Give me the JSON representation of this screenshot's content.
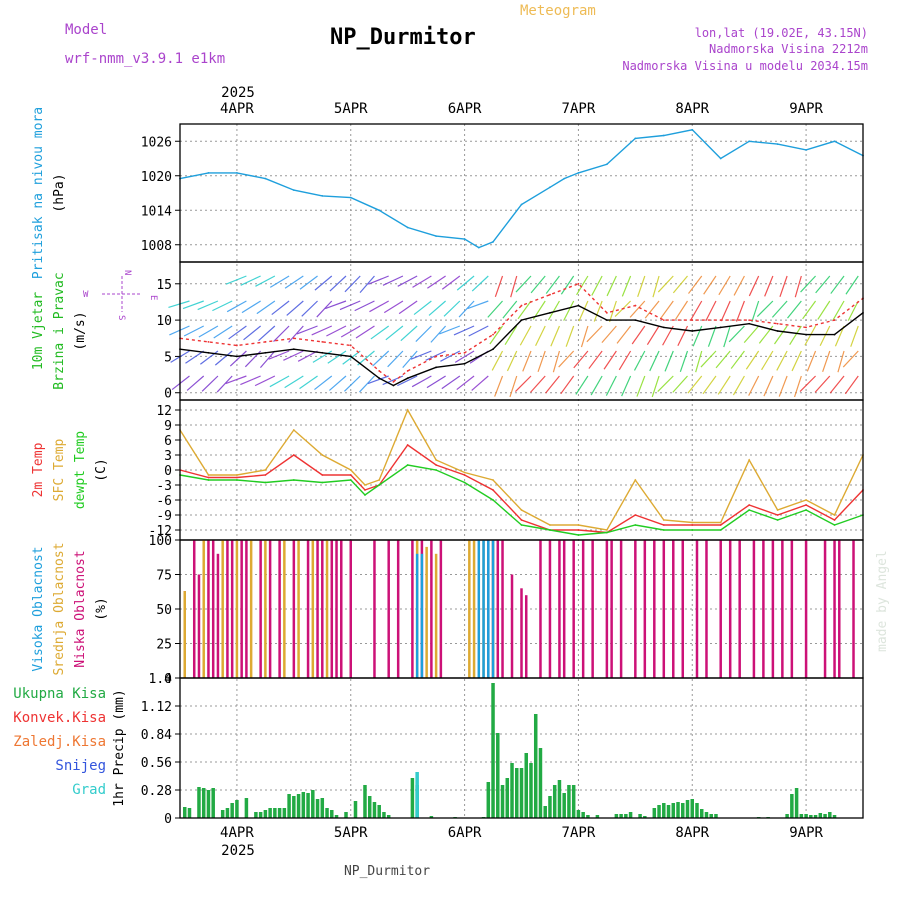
{
  "header": {
    "model_label": "Model",
    "model_name": "wrf-nmm_v3.9.1 e1km",
    "title": "NP_Durmitor",
    "meteogram": "Meteogram",
    "lonlat": "lon,lat (19.02E, 43.15N)",
    "elevation": "Nadmorska Visina 2212m",
    "model_elevation": "Nadmorska Visina u modelu 2034.15m",
    "year": "2025",
    "footer": "NP_Durmitor",
    "watermark": "made by Angel"
  },
  "colors": {
    "pressure": "#1e9fdc",
    "wind_label": "#22bb22",
    "temp2m": "#ee3333",
    "sfc": "#ddaa33",
    "dew": "#22cc22",
    "cloud_high": "#1e9fdc",
    "cloud_mid": "#ddaa33",
    "cloud_low": "#cc1177",
    "precip_total": "#22aa44",
    "precip_conv": "#ee3333",
    "precip_frz": "#ee7733",
    "precip_snow": "#3355dd",
    "precip_hail": "#33cccc",
    "compass": "#aa44cc"
  },
  "chart_data": {
    "type": "meteogram",
    "dates": [
      "4APR",
      "5APR",
      "6APR",
      "7APR",
      "8APR",
      "9APR"
    ],
    "x_range_hours": [
      -12,
      132
    ],
    "panels": [
      {
        "id": "pressure",
        "type": "line",
        "ylabel": [
          "Pritisak na nivou mora",
          "(hPa)"
        ],
        "ylim": [
          1005,
          1029
        ],
        "yticks": [
          1008,
          1014,
          1020,
          1026
        ],
        "series": [
          {
            "name": "Pritisak na nivou mora",
            "x": [
              -12,
              -6,
              0,
              6,
              12,
              18,
              24,
              30,
              36,
              42,
              48,
              51,
              54,
              60,
              66,
              69,
              72,
              78,
              84,
              90,
              96,
              102,
              108,
              114,
              120,
              126,
              132
            ],
            "y": [
              1019.5,
              1020.5,
              1020.5,
              1019.5,
              1017.5,
              1016.5,
              1016.2,
              1014,
              1011,
              1009.5,
              1009,
              1007.5,
              1008.5,
              1015,
              1018,
              1019.5,
              1020.5,
              1022,
              1026.5,
              1027,
              1028,
              1023,
              1026,
              1025.5,
              1024.5,
              1026,
              1023.5
            ]
          }
        ]
      },
      {
        "id": "wind",
        "type": "line+barbs",
        "ylabel": [
          "10m Vjetar",
          "Brzina i Pravac",
          "(m/s)"
        ],
        "ylim": [
          -1,
          18
        ],
        "yticks": [
          0,
          5,
          10,
          15
        ],
        "compass": [
          "N",
          "E",
          "S",
          "W"
        ],
        "series": [
          {
            "name": "Brzina",
            "x": [
              -12,
              -6,
              0,
              6,
              12,
              18,
              24,
              30,
              33,
              36,
              42,
              48,
              54,
              60,
              66,
              72,
              78,
              84,
              90,
              96,
              102,
              108,
              114,
              120,
              126,
              132
            ],
            "y": [
              6,
              5.5,
              5,
              5.5,
              6,
              5.5,
              5,
              2,
              1,
              2,
              3.5,
              4,
              6,
              10,
              11,
              12,
              10,
              10,
              9,
              8.5,
              9,
              9.5,
              8.5,
              8,
              8,
              11
            ]
          },
          {
            "name": "Udari",
            "x": [
              -12,
              -6,
              0,
              6,
              12,
              18,
              24,
              30,
              33,
              36,
              42,
              48,
              54,
              60,
              66,
              72,
              78,
              84,
              90,
              96,
              102,
              108,
              114,
              120,
              126,
              132
            ],
            "y": [
              7.5,
              7,
              6.5,
              7,
              7.5,
              7,
              6.5,
              3,
              1.5,
              3,
              5,
              5.5,
              8,
              12,
              13.5,
              15,
              11,
              12,
              10,
              10,
              10,
              10,
              9.5,
              9,
              10,
              13
            ]
          }
        ]
      },
      {
        "id": "temperature",
        "type": "line",
        "ylabel": [
          "2m Temp",
          "SFC Temp",
          "dewpt Temp",
          "(C)"
        ],
        "ylim": [
          -14,
          14
        ],
        "yticks": [
          -12,
          -9,
          -6,
          -3,
          0,
          3,
          6,
          9,
          12
        ],
        "series": [
          {
            "name": "2m Temp",
            "x": [
              -12,
              -6,
              0,
              6,
              12,
              18,
              24,
              27,
              30,
              36,
              42,
              48,
              54,
              60,
              66,
              72,
              78,
              84,
              90,
              96,
              102,
              108,
              114,
              120,
              126,
              132
            ],
            "y": [
              0,
              -1.5,
              -1.5,
              -1,
              3,
              -1,
              -1,
              -4,
              -3,
              5,
              1,
              -1,
              -4,
              -10,
              -12,
              -12,
              -12.5,
              -9,
              -11,
              -11,
              -11,
              -7,
              -9,
              -7,
              -10,
              -4
            ]
          },
          {
            "name": "SFC Temp",
            "x": [
              -12,
              -6,
              0,
              6,
              12,
              18,
              24,
              27,
              30,
              36,
              42,
              48,
              54,
              60,
              66,
              72,
              78,
              84,
              90,
              96,
              102,
              108,
              114,
              120,
              126,
              132
            ],
            "y": [
              8,
              -1,
              -1,
              0,
              8,
              3,
              0,
              -3,
              -2,
              12,
              2,
              -0.5,
              -2,
              -8,
              -11,
              -11,
              -12,
              -2,
              -10,
              -10.5,
              -10.5,
              2,
              -8,
              -6,
              -9,
              3
            ]
          },
          {
            "name": "dewpt Temp",
            "x": [
              -12,
              -6,
              0,
              6,
              12,
              18,
              24,
              27,
              30,
              36,
              42,
              48,
              54,
              60,
              66,
              72,
              78,
              84,
              90,
              96,
              102,
              108,
              114,
              120,
              126,
              132
            ],
            "y": [
              -1,
              -2,
              -2,
              -2.5,
              -2,
              -2.5,
              -2,
              -5,
              -3,
              1,
              0,
              -2.5,
              -6,
              -11,
              -12,
              -13,
              -12.5,
              -11,
              -12,
              -12,
              -12,
              -8,
              -10,
              -8,
              -11,
              -9
            ]
          }
        ]
      },
      {
        "id": "clouds",
        "type": "bar",
        "ylabel": [
          "Visoka Oblacnost",
          "Srednja Oblacnost",
          "Niska Oblacnost",
          "(%)"
        ],
        "ylim": [
          0,
          100
        ],
        "yticks": [
          0,
          25,
          50,
          75,
          100
        ],
        "series": [
          {
            "name": "Niska Oblacnost",
            "x": [
              -11,
              -9,
              -8,
              -6,
              -5,
              -4,
              -2,
              -1,
              1,
              2,
              5,
              7,
              9,
              12,
              15,
              17,
              18,
              20,
              21,
              22,
              24,
              29,
              32,
              34,
              37,
              39,
              41,
              43,
              53,
              54,
              55,
              56,
              58,
              60,
              61,
              64,
              66,
              68,
              69,
              71,
              73,
              75,
              78,
              79,
              81,
              84,
              86,
              88,
              90,
              92,
              94,
              97,
              99,
              102,
              104,
              106,
              109,
              111,
              113,
              115,
              117,
              120,
              124,
              126,
              127,
              130
            ],
            "y": [
              63,
              100,
              75,
              100,
              100,
              90,
              100,
              100,
              100,
              100,
              100,
              100,
              100,
              100,
              100,
              100,
              100,
              100,
              100,
              100,
              100,
              100,
              100,
              100,
              100,
              100,
              100,
              100,
              100,
              100,
              100,
              100,
              75,
              65,
              60,
              100,
              100,
              100,
              100,
              100,
              100,
              100,
              100,
              100,
              100,
              100,
              100,
              100,
              100,
              100,
              100,
              100,
              100,
              100,
              100,
              100,
              100,
              100,
              100,
              100,
              100,
              100,
              100,
              100,
              100,
              100
            ]
          },
          {
            "name": "Srednja Oblacnost",
            "x": [
              -11,
              -7,
              -3,
              0,
              3,
              6,
              10,
              13,
              16,
              19,
              38,
              40,
              42,
              49,
              50,
              52,
              54
            ],
            "y": [
              63,
              100,
              100,
              100,
              100,
              100,
              100,
              100,
              100,
              100,
              100,
              95,
              90,
              100,
              100,
              100,
              100
            ]
          },
          {
            "name": "Visoka Oblacnost",
            "x": [
              38,
              39,
              51,
              52,
              53,
              54
            ],
            "y": [
              90,
              90,
              100,
              100,
              100,
              100
            ]
          }
        ]
      },
      {
        "id": "precip",
        "type": "bar",
        "ylabel": [
          "1hr Precip (mm)"
        ],
        "legend": [
          "Ukupna Kisa",
          "Konvek.Kisa",
          "Zaledj.Kisa",
          "Snijeg",
          "Grad"
        ],
        "ylim": [
          0,
          1.4
        ],
        "yticks": [
          0,
          0.28,
          0.56,
          0.84,
          1.12,
          1.4
        ],
        "series": [
          {
            "name": "Ukupna Kisa",
            "x": [
              -11,
              -10,
              -8,
              -7,
              -6,
              -5,
              -3,
              -2,
              -1,
              0,
              2,
              4,
              5,
              6,
              7,
              8,
              9,
              10,
              11,
              12,
              13,
              14,
              15,
              16,
              17,
              18,
              19,
              20,
              21,
              23,
              25,
              27,
              28,
              29,
              30,
              31,
              32,
              37,
              38,
              41,
              46,
              52,
              53,
              54,
              55,
              56,
              57,
              58,
              59,
              60,
              61,
              62,
              63,
              64,
              65,
              66,
              67,
              68,
              69,
              70,
              71,
              72,
              73,
              74,
              76,
              80,
              81,
              82,
              83,
              85,
              86,
              88,
              89,
              90,
              91,
              92,
              93,
              94,
              95,
              96,
              97,
              98,
              99,
              100,
              101,
              110,
              112,
              116,
              117,
              118,
              119,
              120,
              121,
              122,
              123,
              124,
              125,
              126
            ],
            "y": [
              0.11,
              0.1,
              0.31,
              0.3,
              0.28,
              0.3,
              0.08,
              0.1,
              0.15,
              0.18,
              0.2,
              0.06,
              0.06,
              0.08,
              0.1,
              0.1,
              0.1,
              0.1,
              0.24,
              0.22,
              0.24,
              0.26,
              0.25,
              0.28,
              0.19,
              0.2,
              0.1,
              0.08,
              0.03,
              0.06,
              0.17,
              0.33,
              0.22,
              0.16,
              0.13,
              0.06,
              0.03,
              0.4,
              0.33,
              0.02,
              0.01,
              0.01,
              0.36,
              1.35,
              0.85,
              0.33,
              0.4,
              0.55,
              0.5,
              0.5,
              0.65,
              0.55,
              1.04,
              0.7,
              0.12,
              0.22,
              0.33,
              0.38,
              0.25,
              0.33,
              0.33,
              0.08,
              0.06,
              0.03,
              0.03,
              0.04,
              0.04,
              0.04,
              0.06,
              0.04,
              0.02,
              0.1,
              0.13,
              0.15,
              0.13,
              0.15,
              0.16,
              0.15,
              0.18,
              0.19,
              0.15,
              0.09,
              0.06,
              0.04,
              0.04,
              0.01,
              0.01,
              0.04,
              0.24,
              0.3,
              0.04,
              0.04,
              0.03,
              0.03,
              0.05,
              0.04,
              0.06,
              0.03
            ]
          },
          {
            "name": "Grad",
            "x": [
              38
            ],
            "y": [
              0.46
            ]
          }
        ]
      }
    ]
  }
}
